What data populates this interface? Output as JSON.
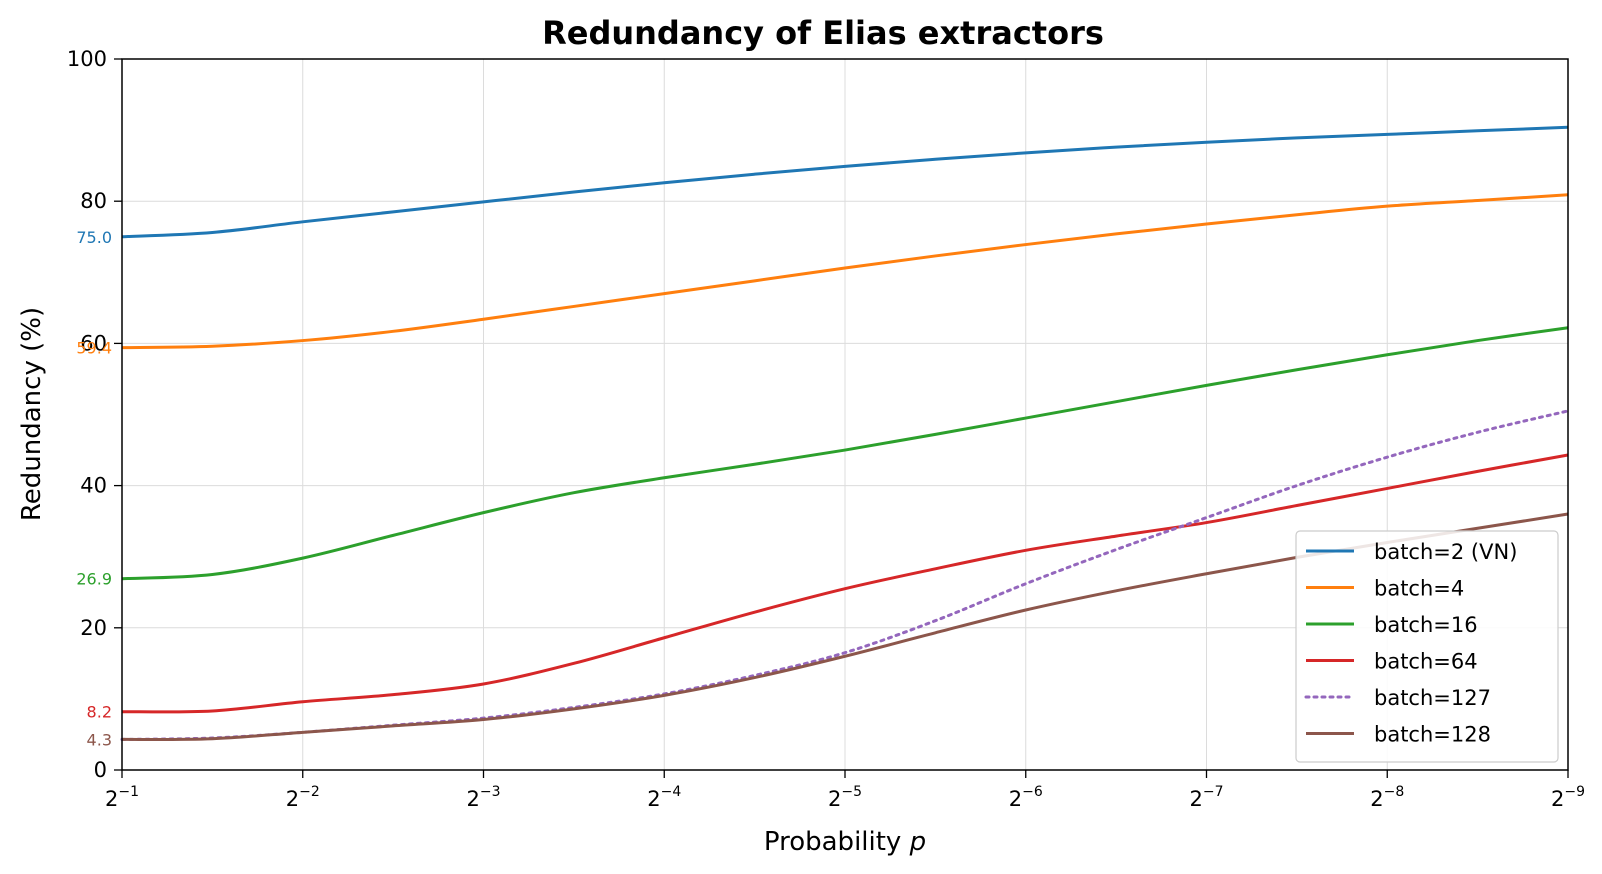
{
  "chart_data": {
    "type": "line",
    "title": "Redundancy of Elias extractors",
    "xlabel": "Probability",
    "xlabel_var": "p",
    "ylabel": "Redundancy (%)",
    "xscale": "log2",
    "xlim_exponent": [
      -1,
      -9
    ],
    "ylim": [
      0,
      100
    ],
    "grid": true,
    "legend_position": "lower right",
    "x_ticks": [
      {
        "base": "2",
        "exp": "−1",
        "value": -1
      },
      {
        "base": "2",
        "exp": "−2",
        "value": -2
      },
      {
        "base": "2",
        "exp": "−3",
        "value": -3
      },
      {
        "base": "2",
        "exp": "−4",
        "value": -4
      },
      {
        "base": "2",
        "exp": "−5",
        "value": -5
      },
      {
        "base": "2",
        "exp": "−6",
        "value": -6
      },
      {
        "base": "2",
        "exp": "−7",
        "value": -7
      },
      {
        "base": "2",
        "exp": "−8",
        "value": -8
      },
      {
        "base": "2",
        "exp": "−9",
        "value": -9
      }
    ],
    "y_ticks": [
      0,
      20,
      40,
      60,
      80,
      100
    ],
    "x_exponent": [
      -1,
      -1.5,
      -2,
      -2.5,
      -3,
      -3.5,
      -4,
      -4.5,
      -5,
      -5.5,
      -6,
      -6.5,
      -7,
      -7.5,
      -8,
      -8.5,
      -9
    ],
    "series": [
      {
        "name": "batch=2 (VN)",
        "color": "#1f77b4",
        "style": "solid",
        "start_label": "75.0",
        "values": [
          75.0,
          75.6,
          77.1,
          78.5,
          79.9,
          81.3,
          82.6,
          83.8,
          84.9,
          85.9,
          86.8,
          87.6,
          88.3,
          88.9,
          89.4,
          89.9,
          90.4
        ]
      },
      {
        "name": "batch=4",
        "color": "#ff7f0e",
        "style": "solid",
        "start_label": "59.4",
        "values": [
          59.4,
          59.6,
          60.4,
          61.7,
          63.4,
          65.2,
          67.0,
          68.8,
          70.6,
          72.3,
          73.9,
          75.4,
          76.8,
          78.1,
          79.3,
          80.1,
          80.9
        ]
      },
      {
        "name": "batch=16",
        "color": "#2ca02c",
        "style": "solid",
        "start_label": "26.9",
        "values": [
          26.9,
          27.5,
          29.8,
          33.0,
          36.2,
          39.0,
          41.1,
          43.0,
          45.0,
          47.2,
          49.5,
          51.8,
          54.1,
          56.3,
          58.4,
          60.4,
          62.2
        ]
      },
      {
        "name": "batch=64",
        "color": "#d62728",
        "style": "solid",
        "start_label": "8.2",
        "values": [
          8.2,
          8.3,
          9.6,
          10.6,
          12.1,
          15.0,
          18.6,
          22.2,
          25.5,
          28.3,
          30.9,
          32.9,
          34.8,
          37.2,
          39.6,
          42.0,
          44.3
        ]
      },
      {
        "name": "batch=127",
        "color": "#9467bd",
        "style": "dotted",
        "start_label": "",
        "values": [
          4.3,
          4.5,
          5.3,
          6.3,
          7.3,
          8.8,
          10.7,
          13.3,
          16.5,
          21.0,
          26.2,
          31.0,
          35.5,
          40.0,
          44.0,
          47.5,
          50.5
        ]
      },
      {
        "name": "batch=128",
        "color": "#8c564b",
        "style": "solid",
        "start_label": "4.3",
        "values": [
          4.3,
          4.4,
          5.3,
          6.2,
          7.1,
          8.6,
          10.5,
          13.0,
          16.0,
          19.3,
          22.5,
          25.2,
          27.6,
          29.9,
          32.0,
          34.0,
          36.0
        ]
      }
    ]
  }
}
